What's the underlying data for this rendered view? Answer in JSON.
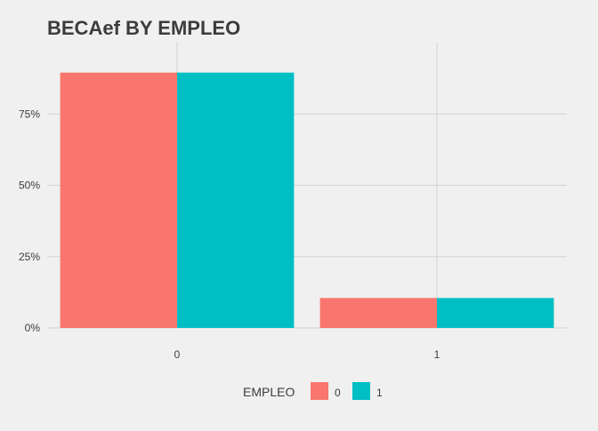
{
  "chart_data": {
    "type": "bar",
    "title": "BECAef BY EMPLEO",
    "xlabel": "",
    "ylabel": "",
    "categories": [
      "0",
      "1"
    ],
    "series": [
      {
        "name": "0",
        "values": [
          89.5,
          10.5
        ],
        "color": "#F8766D"
      },
      {
        "name": "1",
        "values": [
          89.5,
          10.5
        ],
        "color": "#00BFC4"
      }
    ],
    "ylim": [
      0,
      100
    ],
    "y_ticks": [
      0,
      25,
      50,
      75
    ],
    "y_tick_labels": [
      "0%",
      "25%",
      "50%",
      "75%"
    ],
    "grid": true,
    "legend": {
      "title": "EMPLEO",
      "position": "bottom"
    }
  }
}
